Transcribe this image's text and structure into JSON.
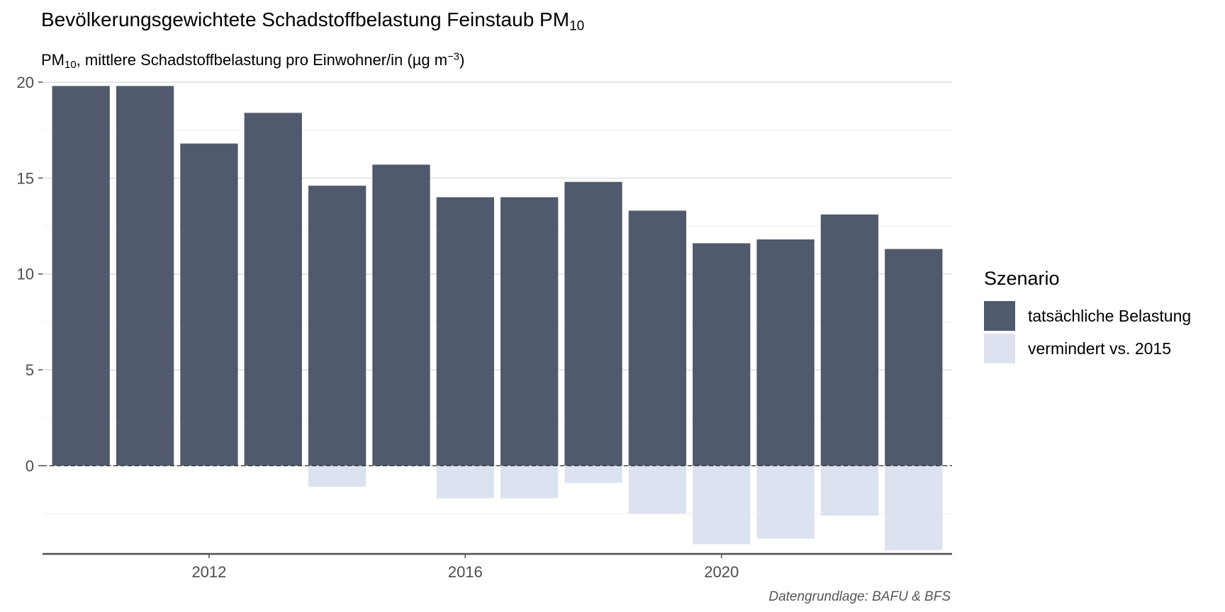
{
  "header": {
    "title_main": "Bevölkerungsgewichtete Schadstoffbelastung Feinstaub PM",
    "title_sub": "10",
    "subtitle_pre": "PM",
    "subtitle_sub": "10",
    "subtitle_mid": ", mittlere Schadstoffbelastung pro Einwohner/in (µg m",
    "subtitle_sup": "−3",
    "subtitle_post": ")"
  },
  "caption": "Datengrundlage: BAFU & BFS",
  "colors": {
    "actual": "#515a6c",
    "reduced": "#dde2f0",
    "grid_major": "#e6e6e6",
    "grid_minor": "#f2f2f2",
    "axis": "#4d4d4d",
    "zero_line": "#333333"
  },
  "chart_data": {
    "type": "bar",
    "x": [
      2010,
      2011,
      2012,
      2013,
      2014,
      2015,
      2016,
      2017,
      2018,
      2019,
      2020,
      2021,
      2022,
      2023
    ],
    "x_ticks": [
      2012,
      2016,
      2020
    ],
    "y_ticks": [
      0,
      5,
      10,
      15,
      20
    ],
    "ylim": [
      -4.6,
      20
    ],
    "grid": true,
    "zero_line": "dashed",
    "series": [
      {
        "name": "tatsächliche Belastung",
        "values": [
          19.8,
          19.8,
          16.8,
          18.4,
          14.6,
          15.7,
          14.0,
          14.0,
          14.8,
          13.3,
          11.6,
          11.8,
          13.1,
          11.3
        ]
      },
      {
        "name": "vermindert vs. 2015",
        "values": [
          0,
          0,
          0,
          0,
          -1.1,
          0,
          -1.7,
          -1.7,
          -0.9,
          -2.5,
          -4.1,
          -3.8,
          -2.6,
          -4.4
        ]
      }
    ],
    "legend": {
      "title": "Szenario",
      "position": "right"
    }
  }
}
